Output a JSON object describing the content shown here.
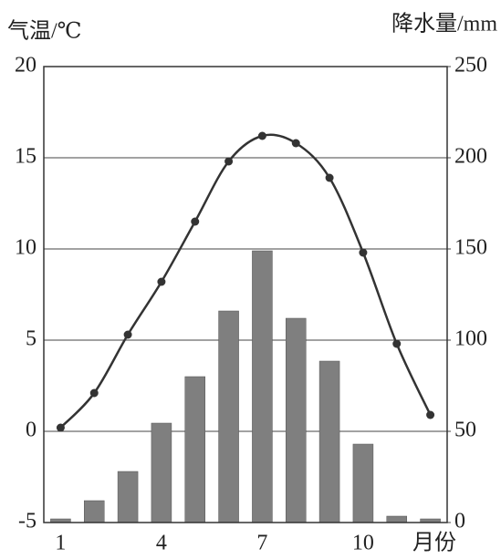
{
  "chart_data": {
    "type": "combo",
    "ylabel": "气温/℃",
    "y2label": "降水量/mm",
    "xlabel": "月份",
    "categories": [
      "1",
      null,
      null,
      "4",
      null,
      null,
      "7",
      null,
      null,
      "10",
      null,
      null
    ],
    "series": [
      {
        "type": "bar",
        "axis": "y2",
        "color": "#7f7f7f",
        "values": [
          2,
          12,
          28,
          54.5,
          80,
          116,
          149,
          112,
          88.5,
          43,
          3.5,
          2
        ]
      },
      {
        "type": "line",
        "color": "#333333",
        "values": [
          0.2,
          2.1,
          5.3,
          8.2,
          11.5,
          14.8,
          16.2,
          15.8,
          13.9,
          9.8,
          4.8,
          0.9
        ]
      }
    ],
    "ylim": [
      -5,
      20
    ],
    "yticks": [
      20,
      15,
      10,
      5,
      0,
      -5
    ],
    "y2lim": [
      0,
      250
    ],
    "y2ticks": [
      250,
      200,
      150,
      100,
      50,
      0
    ],
    "grid": true
  }
}
